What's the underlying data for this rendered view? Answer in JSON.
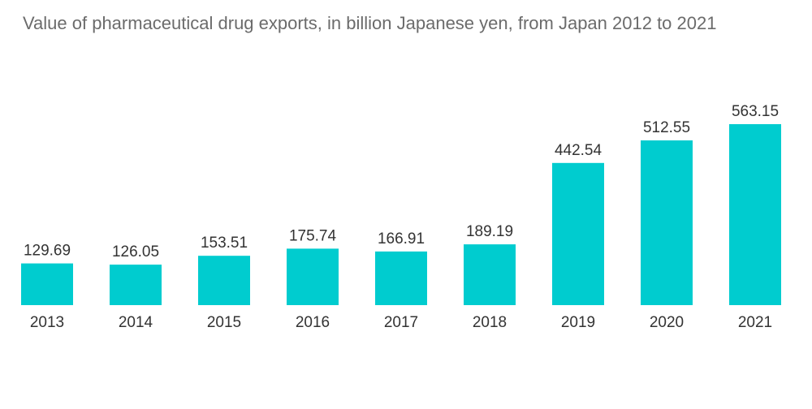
{
  "chart_data": {
    "type": "bar",
    "title": "Value of pharmaceutical drug exports, in billion Japanese yen, from Japan 2012 to 2021",
    "categories": [
      "2013",
      "2014",
      "2015",
      "2016",
      "2017",
      "2018",
      "2019",
      "2020",
      "2021"
    ],
    "values": [
      129.69,
      126.05,
      153.51,
      175.74,
      166.91,
      189.19,
      442.54,
      512.55,
      563.15
    ],
    "value_labels": [
      "129.69",
      "126.05",
      "153.51",
      "175.74",
      "166.91",
      "189.19",
      "442.54",
      "512.55",
      "563.15"
    ],
    "xlabel": "",
    "ylabel": "",
    "ylim": [
      0,
      563.15
    ],
    "grid": false,
    "legend": "none",
    "bar_color": "#00cccf"
  }
}
